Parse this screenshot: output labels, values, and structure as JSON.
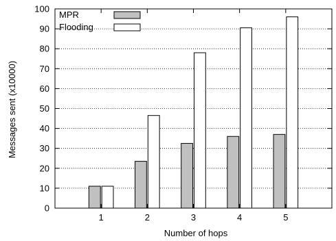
{
  "chart_data": {
    "type": "bar",
    "title": "",
    "xlabel": "Number of hops",
    "ylabel": "Messages sent (x10000)",
    "categories": [
      "1",
      "2",
      "3",
      "4",
      "5"
    ],
    "ylim": [
      0,
      100
    ],
    "yticks": [
      0,
      10,
      20,
      30,
      40,
      50,
      60,
      70,
      80,
      90,
      100
    ],
    "grid": "horizontal dotted",
    "legend_position": "top-left",
    "series": [
      {
        "name": "MPR",
        "color": "#c0c0c0",
        "values": [
          11,
          23.5,
          32.5,
          36,
          37
        ]
      },
      {
        "name": "Flooding",
        "color": "#ffffff",
        "values": [
          11,
          46.5,
          78,
          90.5,
          96
        ]
      }
    ]
  }
}
